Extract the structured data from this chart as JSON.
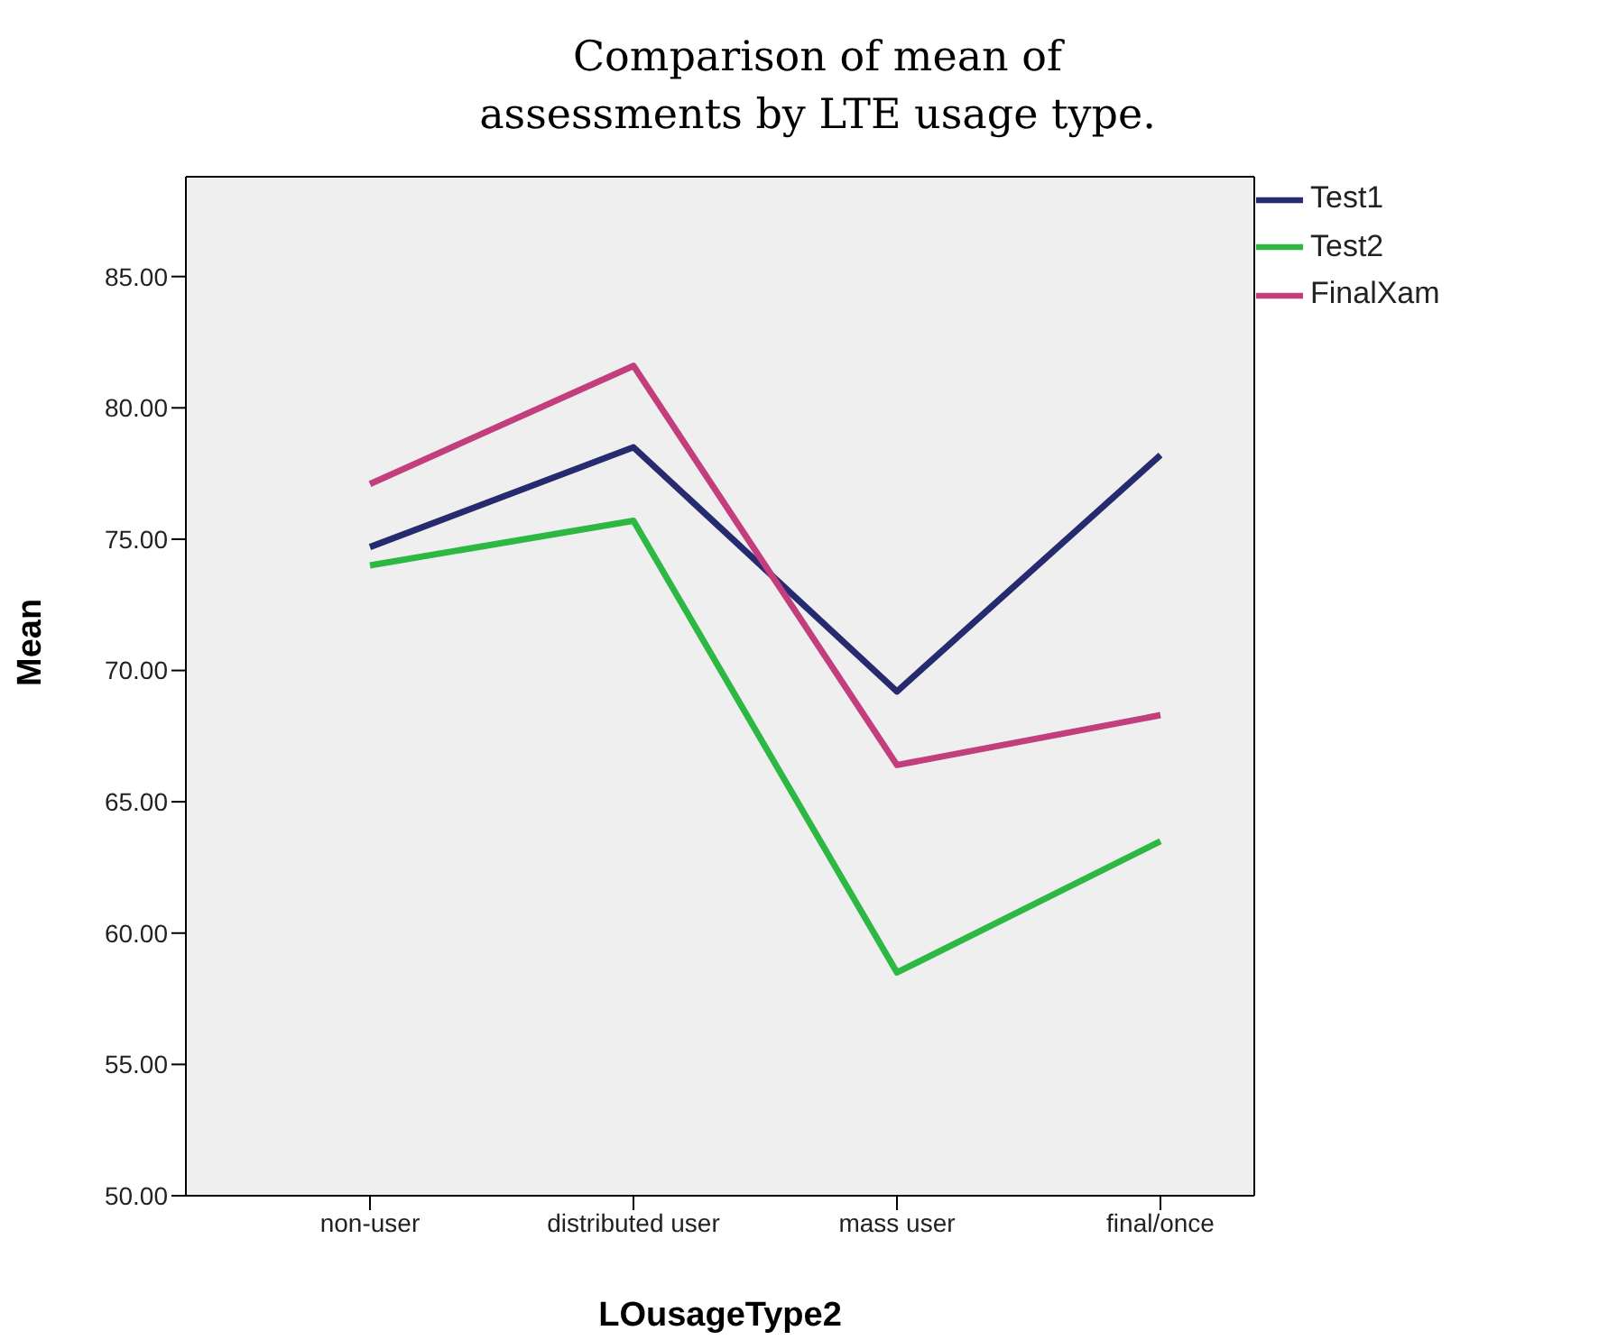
{
  "chart_data": {
    "type": "line",
    "title": "Comparison of mean of assessments by LTE usage type.",
    "xlabel": "LOusageType2",
    "ylabel": "Mean",
    "categories": [
      "non-user",
      "distributed user",
      "mass user",
      "final/once"
    ],
    "series": [
      {
        "name": "Test1",
        "color": "#262a6f",
        "values": [
          74.7,
          78.5,
          69.2,
          78.2
        ]
      },
      {
        "name": "Test2",
        "color": "#2db843",
        "values": [
          74.0,
          75.7,
          58.5,
          63.5
        ]
      },
      {
        "name": "FinalXam",
        "color": "#c23e7c",
        "values": [
          77.1,
          81.6,
          66.4,
          68.3
        ]
      }
    ],
    "ylim": [
      50,
      88.8
    ],
    "yticks": [
      {
        "value": 50,
        "label": "50.00"
      },
      {
        "value": 55,
        "label": "55.00"
      },
      {
        "value": 60,
        "label": "60.00"
      },
      {
        "value": 65,
        "label": "65.00"
      },
      {
        "value": 70,
        "label": "70.00"
      },
      {
        "value": 75,
        "label": "75.00"
      },
      {
        "value": 80,
        "label": "80.00"
      },
      {
        "value": 85,
        "label": "85.00"
      }
    ],
    "grid": false,
    "legend": "top right",
    "marker": "none",
    "line_style": "solid"
  }
}
